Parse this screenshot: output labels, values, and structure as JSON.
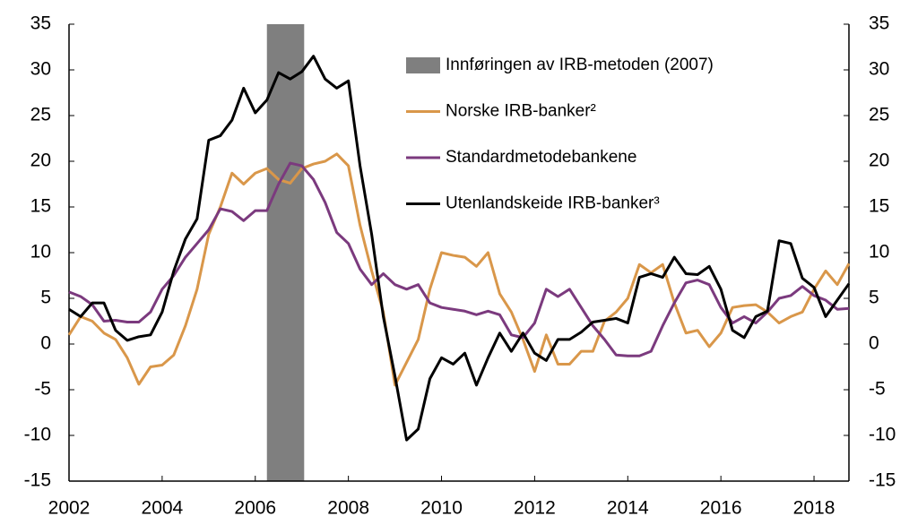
{
  "chart_data": {
    "type": "line",
    "xlim": [
      2002,
      2018.75
    ],
    "xticks": [
      2002,
      2004,
      2006,
      2008,
      2010,
      2012,
      2014,
      2016,
      2018
    ],
    "ylim": [
      -15,
      35
    ],
    "yticks": [
      -15,
      -10,
      -5,
      0,
      5,
      10,
      15,
      20,
      25,
      30,
      35
    ],
    "y2lim": [
      -15,
      35
    ],
    "y2ticks": [
      -15,
      -10,
      -5,
      0,
      5,
      10,
      15,
      20,
      25,
      30,
      35
    ],
    "grid": false,
    "legend": "upper-right",
    "shade": {
      "label": "Innføringen av IRB-metoden (2007)",
      "range": [
        2006.25,
        2007.05
      ],
      "color": "#7f7f7f"
    },
    "series": [
      {
        "name": "Norske IRB-banker²",
        "color": "#d9974a",
        "values": [
          1,
          3,
          2.5,
          1.2,
          0.5,
          -1.5,
          -4.4,
          -2.5,
          -2.3,
          -1.2,
          2,
          6,
          12,
          15,
          18.7,
          17.5,
          18.7,
          19.2,
          18,
          17.6,
          19.2,
          19.7,
          20,
          20.8,
          19.5,
          13,
          8,
          3.5,
          -4.5,
          -2,
          0.5,
          6,
          10,
          9.7,
          9.5,
          8.5,
          10,
          5.5,
          3.5,
          0.5,
          -3,
          1,
          -2.2,
          -2.2,
          -0.8,
          -0.8,
          2.5,
          3.5,
          5,
          8.7,
          7.8,
          8.7,
          4.5,
          1.2,
          1.5,
          -0.3,
          1.2,
          4,
          4.2,
          4.3,
          3.5,
          2.3,
          3,
          3.5,
          6,
          8,
          6.5,
          8.8
        ]
      },
      {
        "name": "Standardmetodebankene",
        "color": "#7b3a7e",
        "values": [
          5.7,
          5.2,
          4.3,
          2.5,
          2.6,
          2.4,
          2.4,
          3.5,
          6,
          7.5,
          9.5,
          11,
          12.5,
          14.8,
          14.5,
          13.5,
          14.6,
          14.6,
          17.5,
          19.8,
          19.5,
          18,
          15.5,
          12.2,
          11,
          8.2,
          6.5,
          7.7,
          6.5,
          6,
          6.5,
          4.5,
          4,
          3.8,
          3.6,
          3.2,
          3.6,
          3.2,
          1,
          0.7,
          2.3,
          6,
          5.2,
          6,
          4,
          2,
          0.5,
          -1.2,
          -1.3,
          -1.3,
          -0.8,
          2,
          4.5,
          6.7,
          7,
          6.5,
          4,
          2.3,
          3,
          2.3,
          3.5,
          5,
          5.3,
          6.3,
          5.3,
          4.8,
          3.8,
          3.9
        ]
      },
      {
        "name": "Utenlandskeide IRB-banker³",
        "color": "#000000",
        "values": [
          3.8,
          3,
          4.5,
          4.5,
          1.5,
          0.4,
          0.8,
          1,
          3.5,
          8,
          11.5,
          13.7,
          22.3,
          22.8,
          24.5,
          28,
          25.3,
          26.7,
          29.7,
          29,
          29.8,
          31.5,
          29,
          28,
          28.8,
          19.5,
          12,
          3,
          -3.5,
          -10.5,
          -9.3,
          -3.8,
          -1.5,
          -2.2,
          -1,
          -4.5,
          -1.5,
          1.2,
          -0.8,
          1.2,
          -1,
          -1.8,
          0.5,
          0.5,
          1.3,
          2.4,
          2.6,
          2.8,
          2.3,
          7.3,
          7.7,
          7.3,
          9.5,
          7.7,
          7.6,
          8.5,
          6,
          1.5,
          0.7,
          3,
          3.6,
          11.3,
          11,
          7.2,
          6.2,
          3,
          4.8,
          6.6
        ]
      }
    ]
  }
}
